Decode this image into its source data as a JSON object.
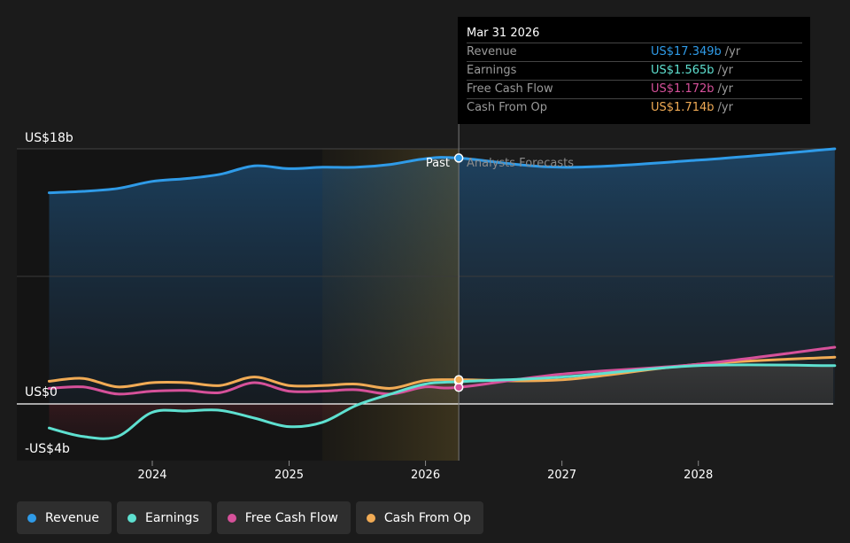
{
  "chart_data": {
    "type": "area",
    "x_ticks": [
      "2024",
      "2025",
      "2026",
      "2027",
      "2028"
    ],
    "y_axis_labels": {
      "top": "US$18b",
      "zero": "US$0",
      "bottom": "-US$4b"
    },
    "ylim": [
      -4,
      18
    ],
    "period_labels": {
      "past": "Past",
      "forecast": "Analysts Forecasts"
    },
    "divider_date": "2026-03-31",
    "series": [
      {
        "name": "Revenue",
        "color": "#2f9be8",
        "points": [
          [
            "2023-03-31",
            14.9
          ],
          [
            "2023-06-30",
            15.0
          ],
          [
            "2023-09-30",
            15.2
          ],
          [
            "2023-12-31",
            15.7
          ],
          [
            "2024-03-31",
            15.9
          ],
          [
            "2024-06-30",
            16.2
          ],
          [
            "2024-09-30",
            16.8
          ],
          [
            "2024-12-31",
            16.6
          ],
          [
            "2025-03-31",
            16.7
          ],
          [
            "2025-06-30",
            16.7
          ],
          [
            "2025-09-30",
            16.9
          ],
          [
            "2025-12-31",
            17.3
          ],
          [
            "2026-03-31",
            17.35
          ],
          [
            "2026-12-31",
            16.7
          ],
          [
            "2027-12-31",
            17.2
          ],
          [
            "2028-12-31",
            18.0
          ]
        ]
      },
      {
        "name": "Earnings",
        "color": "#5ee0d0",
        "points": [
          [
            "2023-03-31",
            -1.7
          ],
          [
            "2023-06-30",
            -2.3
          ],
          [
            "2023-09-30",
            -2.3
          ],
          [
            "2023-12-31",
            -0.6
          ],
          [
            "2024-03-31",
            -0.5
          ],
          [
            "2024-06-30",
            -0.45
          ],
          [
            "2024-09-30",
            -1.0
          ],
          [
            "2024-12-31",
            -1.6
          ],
          [
            "2025-03-31",
            -1.3
          ],
          [
            "2025-06-30",
            -0.1
          ],
          [
            "2025-09-30",
            0.7
          ],
          [
            "2025-12-31",
            1.4
          ],
          [
            "2026-03-31",
            1.57
          ],
          [
            "2026-12-31",
            1.9
          ],
          [
            "2027-12-31",
            2.7
          ],
          [
            "2028-12-31",
            2.7
          ]
        ]
      },
      {
        "name": "Free Cash Flow",
        "color": "#d6519a",
        "points": [
          [
            "2023-03-31",
            1.1
          ],
          [
            "2023-06-30",
            1.2
          ],
          [
            "2023-09-30",
            0.7
          ],
          [
            "2023-12-31",
            0.9
          ],
          [
            "2024-03-31",
            0.95
          ],
          [
            "2024-06-30",
            0.8
          ],
          [
            "2024-09-30",
            1.5
          ],
          [
            "2024-12-31",
            0.9
          ],
          [
            "2025-03-31",
            0.9
          ],
          [
            "2025-06-30",
            1.0
          ],
          [
            "2025-09-30",
            0.7
          ],
          [
            "2025-12-31",
            1.2
          ],
          [
            "2026-03-31",
            1.17
          ],
          [
            "2026-12-31",
            2.1
          ],
          [
            "2027-12-31",
            2.8
          ],
          [
            "2028-12-31",
            4.0
          ]
        ]
      },
      {
        "name": "Cash From Op",
        "color": "#f1ab55",
        "points": [
          [
            "2023-03-31",
            1.6
          ],
          [
            "2023-06-30",
            1.8
          ],
          [
            "2023-09-30",
            1.2
          ],
          [
            "2023-12-31",
            1.5
          ],
          [
            "2024-03-31",
            1.5
          ],
          [
            "2024-06-30",
            1.3
          ],
          [
            "2024-09-30",
            1.9
          ],
          [
            "2024-12-31",
            1.3
          ],
          [
            "2025-03-31",
            1.3
          ],
          [
            "2025-06-30",
            1.4
          ],
          [
            "2025-09-30",
            1.1
          ],
          [
            "2025-12-31",
            1.65
          ],
          [
            "2026-03-31",
            1.71
          ],
          [
            "2026-12-31",
            1.7
          ],
          [
            "2027-12-31",
            2.8
          ],
          [
            "2028-12-31",
            3.3
          ]
        ]
      }
    ]
  },
  "tooltip": {
    "date": "Mar 31 2026",
    "rows": [
      {
        "label": "Revenue",
        "value": "US$17.349b",
        "unit": "/yr",
        "color": "#2f9be8"
      },
      {
        "label": "Earnings",
        "value": "US$1.565b",
        "unit": "/yr",
        "color": "#5ee0d0"
      },
      {
        "label": "Free Cash Flow",
        "value": "US$1.172b",
        "unit": "/yr",
        "color": "#d6519a"
      },
      {
        "label": "Cash From Op",
        "value": "US$1.714b",
        "unit": "/yr",
        "color": "#f1ab55"
      }
    ]
  },
  "legend": [
    {
      "label": "Revenue",
      "color": "#2f9be8"
    },
    {
      "label": "Earnings",
      "color": "#5ee0d0"
    },
    {
      "label": "Free Cash Flow",
      "color": "#d6519a"
    },
    {
      "label": "Cash From Op",
      "color": "#f1ab55"
    }
  ]
}
